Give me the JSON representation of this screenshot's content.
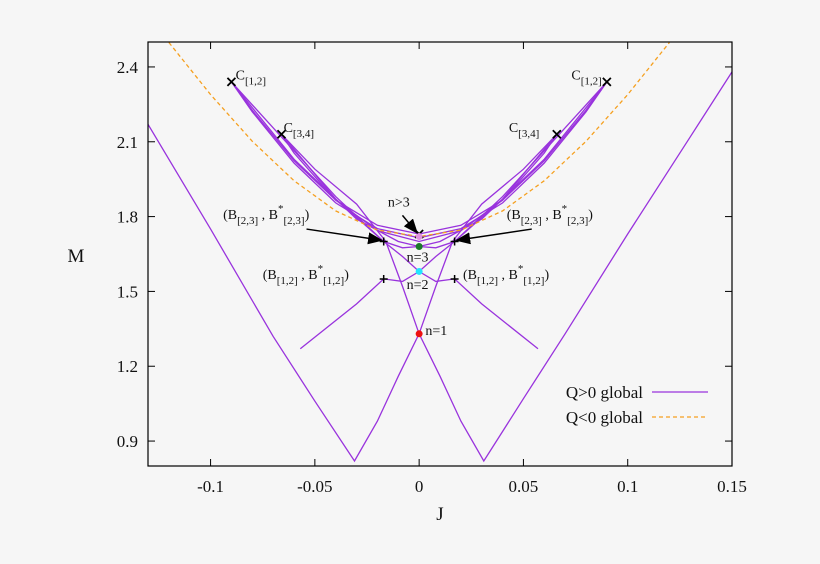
{
  "chart_data": {
    "type": "line",
    "xlabel": "J",
    "ylabel": "M",
    "xlim": [
      -0.13,
      0.15
    ],
    "ylim": [
      0.8,
      2.5
    ],
    "xticks": [
      -0.1,
      -0.05,
      0,
      0.05,
      0.1,
      0.15
    ],
    "xtick_labels": [
      "-0.1",
      "-0.05",
      "0",
      "0.05",
      "0.1",
      "0.15"
    ],
    "yticks": [
      0.9,
      1.2,
      1.5,
      1.8,
      2.1,
      2.4
    ],
    "ytick_labels": [
      "0.9",
      "1.2",
      "1.5",
      "1.8",
      "2.1",
      "2.4"
    ],
    "grid": false,
    "legend_position": "bottom-right",
    "series": [
      {
        "name": "Q>0 global",
        "color": "#9933dd",
        "dash": "solid",
        "curves": [
          [
            [
              -0.13,
              2.17
            ],
            [
              -0.1,
              1.75
            ],
            [
              -0.07,
              1.32
            ],
            [
              -0.05,
              1.06
            ],
            [
              -0.031,
              0.82
            ],
            [
              -0.02,
              0.98
            ],
            [
              -0.01,
              1.16
            ],
            [
              0,
              1.33
            ],
            [
              0.008,
              1.52
            ],
            [
              0.016,
              1.7
            ],
            [
              0.03,
              1.85
            ],
            [
              0.05,
              1.99
            ],
            [
              0.066,
              2.13
            ]
          ],
          [
            [
              0.15,
              2.38
            ],
            [
              0.13,
              2.12
            ],
            [
              0.1,
              1.73
            ],
            [
              0.07,
              1.33
            ],
            [
              0.05,
              1.07
            ],
            [
              0.031,
              0.82
            ],
            [
              0.02,
              0.98
            ],
            [
              0.01,
              1.16
            ],
            [
              0,
              1.33
            ],
            [
              -0.008,
              1.52
            ],
            [
              -0.016,
              1.7
            ],
            [
              -0.03,
              1.85
            ],
            [
              -0.05,
              1.99
            ],
            [
              -0.066,
              2.13
            ]
          ],
          [
            [
              -0.09,
              2.34
            ],
            [
              -0.08,
              2.226
            ],
            [
              -0.06,
              2.024
            ],
            [
              -0.04,
              1.866
            ],
            [
              -0.02,
              1.765
            ],
            [
              0,
              1.73
            ],
            [
              0.02,
              1.765
            ],
            [
              0.04,
              1.866
            ],
            [
              0.06,
              2.024
            ],
            [
              0.08,
              2.226
            ],
            [
              0.09,
              2.34
            ]
          ],
          [
            [
              -0.09,
              2.34
            ],
            [
              -0.08,
              2.22
            ],
            [
              -0.06,
              2.015
            ],
            [
              -0.04,
              1.855
            ],
            [
              -0.02,
              1.752
            ],
            [
              0,
              1.715
            ],
            [
              0.02,
              1.752
            ],
            [
              0.04,
              1.855
            ],
            [
              0.06,
              2.015
            ],
            [
              0.08,
              2.22
            ],
            [
              0.09,
              2.34
            ]
          ],
          [
            [
              -0.066,
              2.13
            ],
            [
              -0.06,
              2.055
            ],
            [
              -0.04,
              1.866
            ],
            [
              -0.02,
              1.744
            ],
            [
              0,
              1.7
            ],
            [
              0.02,
              1.744
            ],
            [
              0.04,
              1.866
            ],
            [
              0.06,
              2.055
            ],
            [
              0.066,
              2.13
            ]
          ],
          [
            [
              -0.066,
              2.13
            ],
            [
              -0.04,
              1.87
            ],
            [
              -0.017,
              1.7
            ],
            [
              -0.008,
              1.675
            ],
            [
              0,
              1.68
            ],
            [
              0.01,
              1.7
            ],
            [
              0.03,
              1.79
            ],
            [
              0.06,
              2.03
            ],
            [
              0.09,
              2.34
            ]
          ],
          [
            [
              0.066,
              2.13
            ],
            [
              0.04,
              1.87
            ],
            [
              0.017,
              1.7
            ],
            [
              0.008,
              1.675
            ],
            [
              0,
              1.68
            ],
            [
              -0.01,
              1.7
            ],
            [
              -0.03,
              1.79
            ],
            [
              -0.06,
              2.03
            ],
            [
              -0.09,
              2.34
            ]
          ],
          [
            [
              -0.057,
              1.27
            ],
            [
              -0.03,
              1.45
            ],
            [
              -0.017,
              1.55
            ],
            [
              -0.008,
              1.54
            ],
            [
              0,
              1.58
            ],
            [
              0.008,
              1.64
            ],
            [
              0.017,
              1.7
            ],
            [
              0.04,
              1.88
            ],
            [
              0.09,
              2.34
            ]
          ],
          [
            [
              0.057,
              1.27
            ],
            [
              0.03,
              1.45
            ],
            [
              0.017,
              1.55
            ],
            [
              0.008,
              1.54
            ],
            [
              0,
              1.58
            ],
            [
              -0.008,
              1.64
            ],
            [
              -0.017,
              1.7
            ],
            [
              -0.04,
              1.88
            ],
            [
              -0.09,
              2.34
            ]
          ]
        ]
      },
      {
        "name": "Q<0 global",
        "color": "#f5a020",
        "dash": "dashed",
        "curves": [
          [
            [
              -0.12,
              2.498
            ],
            [
              -0.1,
              2.289
            ],
            [
              -0.08,
              2.102
            ],
            [
              -0.06,
              1.944
            ],
            [
              -0.04,
              1.823
            ],
            [
              -0.02,
              1.746
            ],
            [
              0,
              1.72
            ],
            [
              0.02,
              1.746
            ],
            [
              0.04,
              1.823
            ],
            [
              0.06,
              1.944
            ],
            [
              0.08,
              2.102
            ],
            [
              0.1,
              2.289
            ],
            [
              0.12,
              2.498
            ]
          ]
        ]
      }
    ],
    "markers": [
      {
        "kind": "cross",
        "J": -0.09,
        "M": 2.34
      },
      {
        "kind": "cross",
        "J": 0.09,
        "M": 2.34
      },
      {
        "kind": "cross",
        "J": -0.066,
        "M": 2.13
      },
      {
        "kind": "cross",
        "J": 0.066,
        "M": 2.13
      },
      {
        "kind": "cross",
        "J": 0,
        "M": 1.73
      },
      {
        "kind": "plus",
        "J": -0.017,
        "M": 1.7
      },
      {
        "kind": "plus",
        "J": 0.017,
        "M": 1.7
      },
      {
        "kind": "plus",
        "J": -0.017,
        "M": 1.55
      },
      {
        "kind": "plus",
        "J": 0.017,
        "M": 1.55
      },
      {
        "kind": "dot",
        "J": 0,
        "M": 1.72,
        "color": "#e090e0"
      },
      {
        "kind": "dot",
        "J": 0,
        "M": 1.68,
        "color": "#1a7a2a"
      },
      {
        "kind": "dot",
        "J": 0,
        "M": 1.58,
        "color": "#22e5ff"
      },
      {
        "kind": "dot",
        "J": 0,
        "M": 1.33,
        "color": "#ee1111"
      }
    ],
    "annotations": [
      {
        "J": -0.088,
        "M": 2.35,
        "anchor": "start",
        "parts": [
          [
            "n",
            "C"
          ],
          [
            "sub",
            "[1,2]"
          ]
        ]
      },
      {
        "J": 0.073,
        "M": 2.35,
        "anchor": "start",
        "parts": [
          [
            "n",
            "C"
          ],
          [
            "sub",
            "[1,2]"
          ]
        ]
      },
      {
        "J": -0.065,
        "M": 2.14,
        "anchor": "start",
        "parts": [
          [
            "n",
            "C"
          ],
          [
            "sub",
            "[3,4]"
          ]
        ]
      },
      {
        "J": 0.043,
        "M": 2.14,
        "anchor": "start",
        "parts": [
          [
            "n",
            "C"
          ],
          [
            "sub",
            "[3,4]"
          ]
        ]
      },
      {
        "J": -0.094,
        "M": 1.79,
        "anchor": "start",
        "parts": [
          [
            "n",
            "(B"
          ],
          [
            "sub",
            "[2,3]"
          ],
          [
            "n",
            " , B"
          ],
          [
            "sup",
            "*"
          ],
          [
            "sub",
            "[2,3]"
          ],
          [
            "n",
            ")"
          ]
        ]
      },
      {
        "J": 0.042,
        "M": 1.79,
        "anchor": "start",
        "parts": [
          [
            "n",
            "(B"
          ],
          [
            "sub",
            "[2,3]"
          ],
          [
            "n",
            " , B"
          ],
          [
            "sup",
            "*"
          ],
          [
            "sub",
            "[2,3]"
          ],
          [
            "n",
            ")"
          ]
        ]
      },
      {
        "J": -0.075,
        "M": 1.55,
        "anchor": "start",
        "parts": [
          [
            "n",
            "(B"
          ],
          [
            "sub",
            "[1,2]"
          ],
          [
            "n",
            " , B"
          ],
          [
            "sup",
            "*"
          ],
          [
            "sub",
            "[1,2]"
          ],
          [
            "n",
            ")"
          ]
        ]
      },
      {
        "J": 0.021,
        "M": 1.55,
        "anchor": "start",
        "parts": [
          [
            "n",
            "(B"
          ],
          [
            "sub",
            "[1,2]"
          ],
          [
            "n",
            " , B"
          ],
          [
            "sup",
            "*"
          ],
          [
            "sub",
            "[1,2]"
          ],
          [
            "n",
            ")"
          ]
        ]
      },
      {
        "J": -0.015,
        "M": 1.84,
        "anchor": "start",
        "parts": [
          [
            "n",
            "n>3"
          ]
        ]
      },
      {
        "J": -0.006,
        "M": 1.62,
        "anchor": "start",
        "parts": [
          [
            "n",
            "n=3"
          ]
        ]
      },
      {
        "J": -0.006,
        "M": 1.51,
        "anchor": "start",
        "parts": [
          [
            "n",
            "n=2"
          ]
        ]
      },
      {
        "J": 0.003,
        "M": 1.325,
        "anchor": "start",
        "parts": [
          [
            "n",
            "n=1"
          ]
        ]
      }
    ],
    "arrows": [
      {
        "from": [
          -0.054,
          1.75
        ],
        "to": [
          -0.018,
          1.705
        ]
      },
      {
        "from": [
          0.054,
          1.75
        ],
        "to": [
          0.018,
          1.705
        ]
      },
      {
        "from": [
          -0.008,
          1.805
        ],
        "to": [
          -0.001,
          1.735
        ]
      }
    ]
  }
}
